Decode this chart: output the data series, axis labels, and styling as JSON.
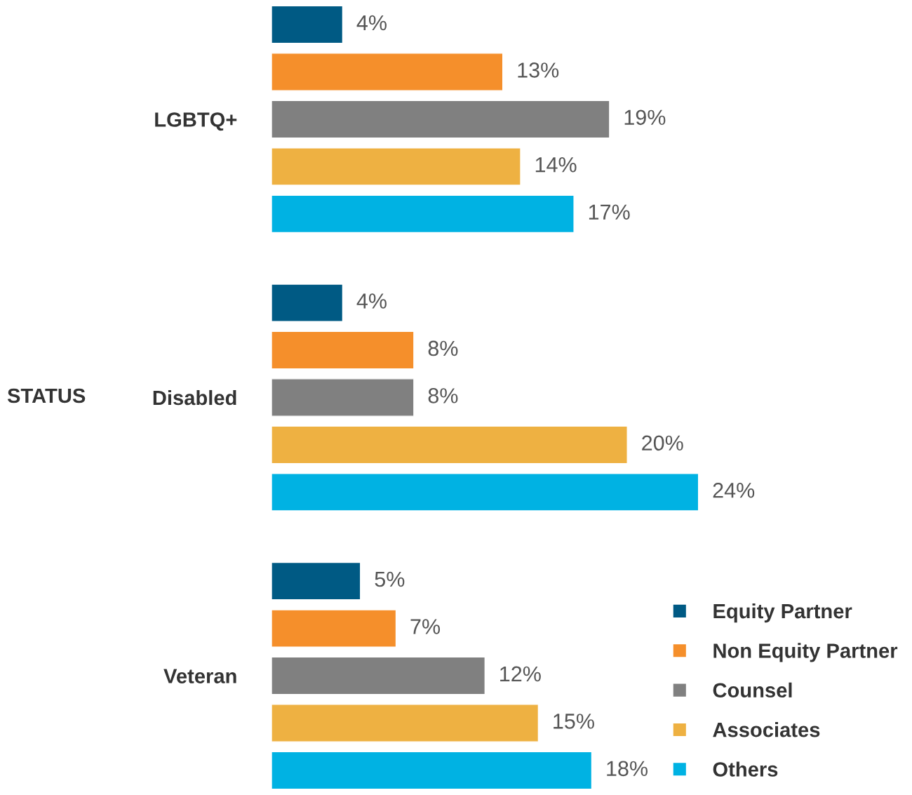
{
  "chart_data": {
    "type": "bar",
    "orientation": "horizontal",
    "ylabel": "STATUS",
    "categories": [
      "LGBTQ+",
      "Disabled",
      "Veteran"
    ],
    "series": [
      {
        "name": "Equity Partner",
        "color": "#005a84",
        "values": [
          4,
          4,
          5
        ],
        "value_labels": [
          "4%",
          "4%",
          "5%"
        ]
      },
      {
        "name": "Non Equity Partner",
        "color": "#f58f2b",
        "values": [
          13,
          8,
          7
        ],
        "value_labels": [
          "13%",
          "8%",
          "7%"
        ]
      },
      {
        "name": "Counsel",
        "color": "#808080",
        "values": [
          19,
          8,
          12
        ],
        "value_labels": [
          "19%",
          "8%",
          "12%"
        ]
      },
      {
        "name": "Associates",
        "color": "#eeb142",
        "values": [
          14,
          20,
          15
        ],
        "value_labels": [
          "14%",
          "20%",
          "15%"
        ]
      },
      {
        "name": "Others",
        "color": "#00b2e3",
        "values": [
          17,
          24,
          18
        ],
        "value_labels": [
          "17%",
          "24%",
          "18%"
        ]
      }
    ],
    "legend": "bottom right",
    "grid": false
  }
}
